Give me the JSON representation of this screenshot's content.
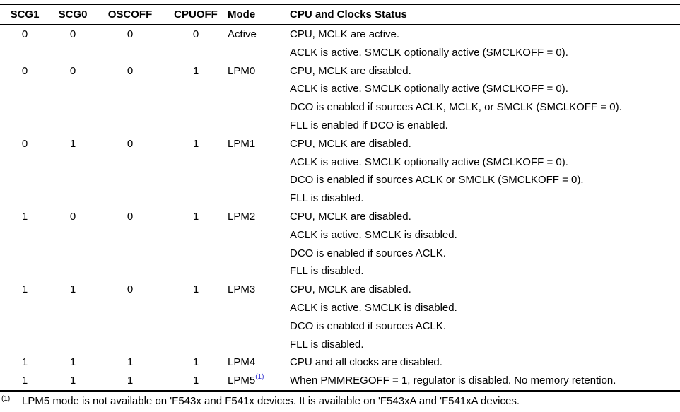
{
  "table": {
    "headers": [
      "SCG1",
      "SCG0",
      "OSCOFF",
      "CPUOFF",
      "Mode",
      "CPU and Clocks Status"
    ],
    "rows": [
      {
        "scg1": "0",
        "scg0": "0",
        "oscoff": "0",
        "cpuoff": "0",
        "mode": "Active",
        "mode_sup": "",
        "status": [
          "CPU, MCLK are active.",
          "ACLK is active. SMCLK optionally active (SMCLKOFF = 0)."
        ]
      },
      {
        "scg1": "0",
        "scg0": "0",
        "oscoff": "0",
        "cpuoff": "1",
        "mode": "LPM0",
        "mode_sup": "",
        "status": [
          "CPU, MCLK are disabled.",
          "ACLK is active. SMCLK optionally active (SMCLKOFF = 0).",
          "DCO is enabled if sources ACLK, MCLK, or SMCLK (SMCLKOFF = 0).",
          "FLL is enabled if DCO is enabled."
        ]
      },
      {
        "scg1": "0",
        "scg0": "1",
        "oscoff": "0",
        "cpuoff": "1",
        "mode": "LPM1",
        "mode_sup": "",
        "status": [
          "CPU, MCLK are disabled.",
          "ACLK is active. SMCLK optionally active (SMCLKOFF = 0).",
          "DCO is enabled if sources ACLK or SMCLK (SMCLKOFF = 0).",
          "FLL is disabled."
        ]
      },
      {
        "scg1": "1",
        "scg0": "0",
        "oscoff": "0",
        "cpuoff": "1",
        "mode": "LPM2",
        "mode_sup": "",
        "status": [
          "CPU, MCLK are disabled.",
          "ACLK is active. SMCLK is disabled.",
          "DCO is enabled if sources ACLK.",
          "FLL is disabled."
        ]
      },
      {
        "scg1": "1",
        "scg0": "1",
        "oscoff": "0",
        "cpuoff": "1",
        "mode": "LPM3",
        "mode_sup": "",
        "status": [
          "CPU, MCLK are disabled.",
          "ACLK is active. SMCLK is disabled.",
          "DCO is enabled if sources ACLK.",
          "FLL is disabled."
        ]
      },
      {
        "scg1": "1",
        "scg0": "1",
        "oscoff": "1",
        "cpuoff": "1",
        "mode": "LPM4",
        "mode_sup": "",
        "status": [
          "CPU and all clocks are disabled."
        ]
      },
      {
        "scg1": "1",
        "scg0": "1",
        "oscoff": "1",
        "cpuoff": "1",
        "mode": "LPM5",
        "mode_sup": "(1)",
        "status": [
          "When PMMREGOFF = 1, regulator is disabled. No memory retention."
        ]
      }
    ]
  },
  "footnote": {
    "marker": "(1)",
    "text": "LPM5 mode is not available on 'F543x and F541x devices. It is available on 'F543xA and 'F541xA devices."
  },
  "colors": {
    "text": "#000000",
    "link_blue": "#3434cf",
    "rule": "#000000",
    "background": "#ffffff"
  }
}
